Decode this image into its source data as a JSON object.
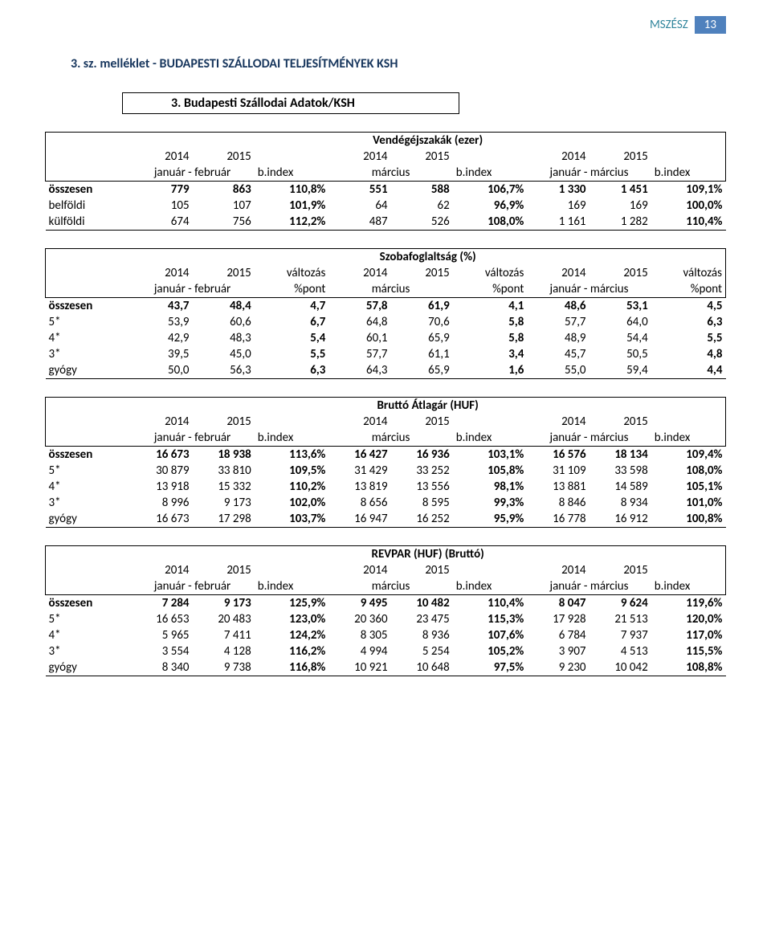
{
  "topbar": {
    "label": "MSZÉSZ",
    "pagenum": "13"
  },
  "section": {
    "num": "3.",
    "title": "sz. melléklet - BUDAPESTI SZÁLLODAI TELJESÍTMÉNYEK KSH"
  },
  "panel_title": "3. Budapesti Szállodai Adatok/KSH",
  "periods": {
    "p1_a": "január - február",
    "p1_b": "b.index",
    "p2_a": "március",
    "p2_b": "b.index",
    "p3_a": "január - március",
    "p3_b": "b.index",
    "pct_a": "január - február",
    "pct_b": "%pont",
    "pct_c": "március",
    "pct_d": "%pont",
    "pct_e": "január - március",
    "pct_f": "%pont",
    "y14": "2014",
    "y15": "2015",
    "chg": "változás"
  },
  "t1": {
    "caption": "Vendégéjszakák (ezer)",
    "rows": [
      {
        "label": "összesen",
        "bold": true,
        "v": [
          "779",
          "863",
          "110,8%",
          "551",
          "588",
          "106,7%",
          "1 330",
          "1 451",
          "109,1%"
        ]
      },
      {
        "label": "belföldi",
        "v": [
          "105",
          "107",
          "101,9%",
          "64",
          "62",
          "96,9%",
          "169",
          "169",
          "100,0%"
        ]
      },
      {
        "label": "külföldi",
        "v": [
          "674",
          "756",
          "112,2%",
          "487",
          "526",
          "108,0%",
          "1 161",
          "1 282",
          "110,4%"
        ]
      }
    ]
  },
  "t2": {
    "caption": "Szobafoglaltság (%)",
    "rows": [
      {
        "label": "összesen",
        "bold": true,
        "v": [
          "43,7",
          "48,4",
          "4,7",
          "57,8",
          "61,9",
          "4,1",
          "48,6",
          "53,1",
          "4,5"
        ]
      },
      {
        "label": "5*",
        "v": [
          "53,9",
          "60,6",
          "6,7",
          "64,8",
          "70,6",
          "5,8",
          "57,7",
          "64,0",
          "6,3"
        ]
      },
      {
        "label": "4*",
        "v": [
          "42,9",
          "48,3",
          "5,4",
          "60,1",
          "65,9",
          "5,8",
          "48,9",
          "54,4",
          "5,5"
        ]
      },
      {
        "label": "3*",
        "v": [
          "39,5",
          "45,0",
          "5,5",
          "57,7",
          "61,1",
          "3,4",
          "45,7",
          "50,5",
          "4,8"
        ]
      },
      {
        "label": "gyógy",
        "v": [
          "50,0",
          "56,3",
          "6,3",
          "64,3",
          "65,9",
          "1,6",
          "55,0",
          "59,4",
          "4,4"
        ]
      }
    ]
  },
  "t3": {
    "caption": "Bruttó Átlagár (HUF)",
    "rows": [
      {
        "label": "összesen",
        "bold": true,
        "v": [
          "16 673",
          "18 938",
          "113,6%",
          "16 427",
          "16 936",
          "103,1%",
          "16 576",
          "18 134",
          "109,4%"
        ]
      },
      {
        "label": "5*",
        "v": [
          "30 879",
          "33 810",
          "109,5%",
          "31 429",
          "33 252",
          "105,8%",
          "31 109",
          "33 598",
          "108,0%"
        ]
      },
      {
        "label": "4*",
        "v": [
          "13 918",
          "15 332",
          "110,2%",
          "13 819",
          "13 556",
          "98,1%",
          "13 881",
          "14 589",
          "105,1%"
        ]
      },
      {
        "label": "3*",
        "v": [
          "8 996",
          "9 173",
          "102,0%",
          "8 656",
          "8 595",
          "99,3%",
          "8 846",
          "8 934",
          "101,0%"
        ]
      },
      {
        "label": "gyógy",
        "v": [
          "16 673",
          "17 298",
          "103,7%",
          "16 947",
          "16 252",
          "95,9%",
          "16 778",
          "16 912",
          "100,8%"
        ]
      }
    ]
  },
  "t4": {
    "caption": "REVPAR (HUF) (Bruttó)",
    "rows": [
      {
        "label": "összesen",
        "bold": true,
        "v": [
          "7 284",
          "9 173",
          "125,9%",
          "9 495",
          "10 482",
          "110,4%",
          "8 047",
          "9 624",
          "119,6%"
        ]
      },
      {
        "label": "5*",
        "v": [
          "16 653",
          "20 483",
          "123,0%",
          "20 360",
          "23 475",
          "115,3%",
          "17 928",
          "21 513",
          "120,0%"
        ]
      },
      {
        "label": "4*",
        "v": [
          "5 965",
          "7 411",
          "124,2%",
          "8 305",
          "8 936",
          "107,6%",
          "6 784",
          "7 937",
          "117,0%"
        ]
      },
      {
        "label": "3*",
        "v": [
          "3 554",
          "4 128",
          "116,2%",
          "4 994",
          "5 254",
          "105,2%",
          "3 907",
          "4 513",
          "115,5%"
        ]
      },
      {
        "label": "gyógy",
        "v": [
          "8 340",
          "9 738",
          "116,8%",
          "10 921",
          "10 648",
          "97,5%",
          "9 230",
          "10 042",
          "108,8%"
        ]
      }
    ]
  },
  "colors": {
    "brand_blue": "#4f81bd",
    "header_teal": "#31859c",
    "title_navy": "#17365d",
    "border": "#000000",
    "bg": "#ffffff"
  }
}
